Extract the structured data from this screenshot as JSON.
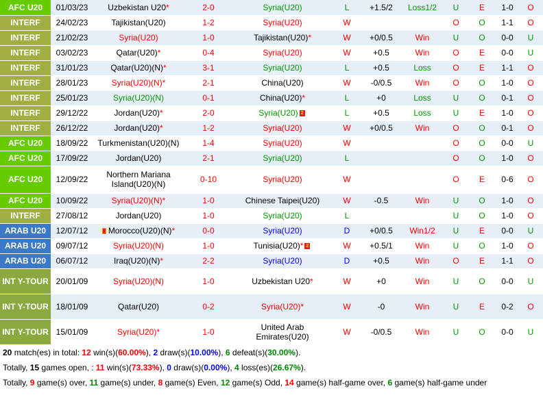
{
  "matches": [
    {
      "league": "AFC U20",
      "league_color": "#66cc00",
      "date": "01/03/23",
      "home": "Uzbekistan U20",
      "home_star": true,
      "home_color": "blk",
      "score": "2-0",
      "away": "Syria(U20)",
      "away_star": false,
      "away_color": "green",
      "result": "L",
      "handicap": "+1.5/2",
      "hcp_result": "Loss1/2",
      "ou": "U",
      "oe": "E",
      "ht": "1-0",
      "htou": "O"
    },
    {
      "league": "INTERF",
      "league_color": "#a0b040",
      "date": "24/02/23",
      "home": "Tajikistan(U20)",
      "home_star": false,
      "home_color": "blk",
      "score": "1-2",
      "away": "Syria(U20)",
      "away_star": false,
      "away_color": "red",
      "result": "W",
      "handicap": "",
      "hcp_result": "",
      "ou": "O",
      "oe": "O",
      "ht": "1-1",
      "htou": "O"
    },
    {
      "league": "INTERF",
      "league_color": "#a0b040",
      "date": "21/02/23",
      "home": "Syria(U20)",
      "home_star": false,
      "home_color": "red",
      "score": "1-0",
      "away": "Tajikistan(U20)",
      "away_star": true,
      "away_color": "blk",
      "result": "W",
      "handicap": "+0/0.5",
      "hcp_result": "Win",
      "ou": "U",
      "oe": "O",
      "ht": "0-0",
      "htou": "U"
    },
    {
      "league": "INTERF",
      "league_color": "#a0b040",
      "date": "03/02/23",
      "home": "Qatar(U20)",
      "home_star": true,
      "home_color": "blk",
      "score": "0-4",
      "away": "Syria(U20)",
      "away_star": false,
      "away_color": "red",
      "result": "W",
      "handicap": "+0.5",
      "hcp_result": "Win",
      "ou": "O",
      "oe": "E",
      "ht": "0-0",
      "htou": "U"
    },
    {
      "league": "INTERF",
      "league_color": "#a0b040",
      "date": "31/01/23",
      "home": "Qatar(U20)(N)",
      "home_star": true,
      "home_color": "blk",
      "score": "3-1",
      "away": "Syria(U20)",
      "away_star": false,
      "away_color": "green",
      "result": "L",
      "handicap": "+0.5",
      "hcp_result": "Loss",
      "ou": "O",
      "oe": "E",
      "ht": "1-1",
      "htou": "O"
    },
    {
      "league": "INTERF",
      "league_color": "#a0b040",
      "date": "28/01/23",
      "home": "Syria(U20)(N)",
      "home_star": true,
      "home_color": "red",
      "score": "2-1",
      "away": "China(U20)",
      "away_star": false,
      "away_color": "blk",
      "result": "W",
      "handicap": "-0/0.5",
      "hcp_result": "Win",
      "ou": "O",
      "oe": "O",
      "ht": "1-0",
      "htou": "O"
    },
    {
      "league": "INTERF",
      "league_color": "#a0b040",
      "date": "25/01/23",
      "home": "Syria(U20)(N)",
      "home_star": false,
      "home_color": "green",
      "score": "0-1",
      "away": "China(U20)",
      "away_star": true,
      "away_color": "blk",
      "result": "L",
      "handicap": "+0",
      "hcp_result": "Loss",
      "ou": "U",
      "oe": "O",
      "ht": "0-1",
      "htou": "O"
    },
    {
      "league": "INTERF",
      "league_color": "#a0b040",
      "date": "29/12/22",
      "home": "Jordan(U20)",
      "home_star": true,
      "home_color": "blk",
      "score": "2-0",
      "away": "Syria(U20)",
      "away_star": false,
      "away_color": "green",
      "away_card": "2",
      "result": "L",
      "handicap": "+0.5",
      "hcp_result": "Loss",
      "ou": "U",
      "oe": "E",
      "ht": "1-0",
      "htou": "O"
    },
    {
      "league": "INTERF",
      "league_color": "#a0b040",
      "date": "26/12/22",
      "home": "Jordan(U20)",
      "home_star": true,
      "home_color": "blk",
      "score": "1-2",
      "away": "Syria(U20)",
      "away_star": false,
      "away_color": "red",
      "result": "W",
      "handicap": "+0/0.5",
      "hcp_result": "Win",
      "ou": "O",
      "oe": "O",
      "ht": "0-1",
      "htou": "O"
    },
    {
      "league": "AFC U20",
      "league_color": "#66cc00",
      "date": "18/09/22",
      "home": "Turkmenistan(U20)(N)",
      "home_star": false,
      "home_color": "blk",
      "score": "1-4",
      "away": "Syria(U20)",
      "away_star": false,
      "away_color": "red",
      "result": "W",
      "handicap": "",
      "hcp_result": "",
      "ou": "O",
      "oe": "O",
      "ht": "0-0",
      "htou": "U"
    },
    {
      "league": "AFC U20",
      "league_color": "#66cc00",
      "date": "17/09/22",
      "home": "Jordan(U20)",
      "home_star": false,
      "home_color": "blk",
      "score": "2-1",
      "away": "Syria(U20)",
      "away_star": false,
      "away_color": "green",
      "result": "L",
      "handicap": "",
      "hcp_result": "",
      "ou": "O",
      "oe": "O",
      "ht": "1-0",
      "htou": "O"
    },
    {
      "league": "AFC U20",
      "league_color": "#66cc00",
      "date": "12/09/22",
      "home": "Northern Mariana Island(U20)(N)",
      "home_star": false,
      "home_color": "blk",
      "score": "0-10",
      "away": "Syria(U20)",
      "away_star": false,
      "away_color": "red",
      "result": "W",
      "handicap": "",
      "hcp_result": "",
      "ou": "O",
      "oe": "E",
      "ht": "0-6",
      "htou": "O"
    },
    {
      "league": "AFC U20",
      "league_color": "#66cc00",
      "date": "10/09/22",
      "home": "Syria(U20)(N)",
      "home_star": true,
      "home_color": "red",
      "score": "1-0",
      "away": "Chinese Taipei(U20)",
      "away_star": false,
      "away_color": "blk",
      "result": "W",
      "handicap": "-0.5",
      "hcp_result": "Win",
      "ou": "U",
      "oe": "O",
      "ht": "1-0",
      "htou": "O"
    },
    {
      "league": "INTERF",
      "league_color": "#a0b040",
      "date": "27/08/12",
      "home": "Jordan(U20)",
      "home_star": false,
      "home_color": "blk",
      "score": "1-0",
      "away": "Syria(U20)",
      "away_star": false,
      "away_color": "green",
      "result": "L",
      "handicap": "",
      "hcp_result": "",
      "ou": "U",
      "oe": "O",
      "ht": "1-0",
      "htou": "O"
    },
    {
      "league": "ARAB U20",
      "league_color": "#3a78c8",
      "date": "12/07/12",
      "home": "Morocco(U20)(N)",
      "home_star": true,
      "home_color": "blk",
      "home_card": true,
      "score": "0-0",
      "away": "Syria(U20)",
      "away_star": false,
      "away_color": "blue",
      "result": "D",
      "handicap": "+0/0.5",
      "hcp_result": "Win1/2",
      "ou": "U",
      "oe": "E",
      "ht": "0-0",
      "htou": "U"
    },
    {
      "league": "ARAB U20",
      "league_color": "#3a78c8",
      "date": "09/07/12",
      "home": "Syria(U20)(N)",
      "home_star": false,
      "home_color": "red",
      "score": "1-0",
      "away": "Tunisia(U20)",
      "away_star": true,
      "away_color": "blk",
      "away_card": "2",
      "result": "W",
      "handicap": "+0.5/1",
      "hcp_result": "Win",
      "ou": "U",
      "oe": "O",
      "ht": "1-0",
      "htou": "O"
    },
    {
      "league": "ARAB U20",
      "league_color": "#3a78c8",
      "date": "06/07/12",
      "home": "Iraq(U20)(N)",
      "home_star": true,
      "home_color": "blk",
      "score": "2-2",
      "away": "Syria(U20)",
      "away_star": false,
      "away_color": "blue",
      "result": "D",
      "handicap": "+0.5",
      "hcp_result": "Win",
      "ou": "O",
      "oe": "E",
      "ht": "1-1",
      "htou": "O"
    },
    {
      "league": "INT Y-TOUR",
      "league_color": "#8aaa40",
      "date": "20/01/09",
      "home": "Syria(U20)(N)",
      "home_star": false,
      "home_color": "red",
      "score": "1-0",
      "away": "Uzbekistan U20",
      "away_star": true,
      "away_color": "blk",
      "result": "W",
      "handicap": "+0",
      "hcp_result": "Win",
      "ou": "U",
      "oe": "O",
      "ht": "0-0",
      "htou": "U"
    },
    {
      "league": "INT Y-TOUR",
      "league_color": "#8aaa40",
      "date": "18/01/09",
      "home": "Qatar(U20)",
      "home_star": false,
      "home_color": "blk",
      "score": "0-2",
      "away": "Syria(U20)",
      "away_star": true,
      "away_color": "red",
      "result": "W",
      "handicap": "-0",
      "hcp_result": "Win",
      "ou": "U",
      "oe": "E",
      "ht": "0-2",
      "htou": "O"
    },
    {
      "league": "INT Y-TOUR",
      "league_color": "#8aaa40",
      "date": "15/01/09",
      "home": "Syria(U20)",
      "home_star": true,
      "home_color": "red",
      "score": "1-0",
      "away": "United Arab Emirates(U20)",
      "away_star": false,
      "away_color": "blk",
      "result": "W",
      "handicap": "-0/0.5",
      "hcp_result": "Win",
      "ou": "U",
      "oe": "O",
      "ht": "0-0",
      "htou": "U"
    }
  ],
  "summary": {
    "line1": {
      "count": "20",
      "count_suffix": " match(es) in total: ",
      "wins": "12",
      "wins_label": " win(s)(",
      "wins_pct": "60.00%",
      "draws_pre": "), ",
      "draws": "2",
      "draws_label": " draw(s)(",
      "draws_pct": "10.00%",
      "defeats_pre": "), ",
      "defeats": "6",
      "defeats_label": " defeat(s)(",
      "defeats_pct": "30.00%",
      "end": ")."
    },
    "line2": {
      "prefix": "Totally, ",
      "open": "15",
      "open_label": " games open, : ",
      "wins": "11",
      "wins_label": " win(s)(",
      "wins_pct": "73.33%",
      "draws_pre": "), ",
      "draws": "0",
      "draws_label": " draw(s)(",
      "draws_pct": "0.00%",
      "loss_pre": "), ",
      "loss": "4",
      "loss_label": " loss(es)(",
      "loss_pct": "26.67%",
      "end": ")."
    },
    "line3": {
      "prefix": "Totally, ",
      "over": "9",
      "over_label": " game(s) over, ",
      "under": "11",
      "under_label": " game(s) under, ",
      "even": "8",
      "even_label": " game(s) Even, ",
      "odd": "12",
      "odd_label": " game(s) Odd, ",
      "hover": "14",
      "hover_label": " game(s) half-game over, ",
      "hunder": "6",
      "hunder_label": " game(s) half-game under"
    }
  }
}
